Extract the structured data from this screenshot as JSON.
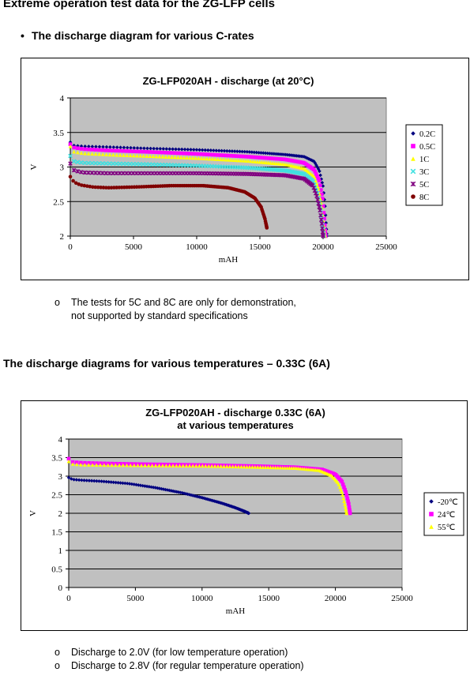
{
  "heading": "Extreme operation test data for the ZG-LFP cells",
  "bullet_heading": "The discharge diagram for various C-rates",
  "note1_line1": "The tests for 5C and 8C are only for demonstration,",
  "note1_line2": "not supported by standard specifications",
  "heading2": "The discharge diagrams for various temperatures – 0.33C (6A)",
  "note2_line1": "Discharge to 2.0V (for low temperature operation)",
  "note2_line2": "Discharge to 2.8V (for regular temperature operation)",
  "chart_data": [
    {
      "type": "scatter",
      "title": "ZG-LFP020AH - discharge (at 20°C)",
      "xlabel": "mAH",
      "ylabel": "V",
      "xlim": [
        0,
        25000
      ],
      "ylim": [
        2,
        4
      ],
      "xticks": [
        0,
        5000,
        10000,
        15000,
        20000,
        25000
      ],
      "yticks": [
        2,
        2.5,
        3,
        3.5,
        4
      ],
      "ytick_labels": [
        "2",
        "2.5",
        "3",
        "3.5",
        "4"
      ],
      "grid": "horizontal",
      "legend_position": "right",
      "series": [
        {
          "name": "0.2C",
          "color": "#000080",
          "marker": "diamond",
          "x": [
            0,
            300,
            1000,
            3000,
            6000,
            10000,
            14000,
            17000,
            18500,
            19300,
            19700,
            20000,
            20150,
            20250,
            20300
          ],
          "y": [
            3.36,
            3.31,
            3.3,
            3.29,
            3.27,
            3.25,
            3.22,
            3.18,
            3.15,
            3.08,
            2.95,
            2.72,
            2.45,
            2.15,
            2.0
          ]
        },
        {
          "name": "0.5C",
          "color": "#ff00ff",
          "marker": "square",
          "x": [
            0,
            300,
            1000,
            3000,
            6000,
            10000,
            14000,
            17000,
            18500,
            19300,
            19700,
            19950,
            20100,
            20200
          ],
          "y": [
            3.33,
            3.28,
            3.26,
            3.24,
            3.22,
            3.19,
            3.15,
            3.11,
            3.06,
            2.96,
            2.8,
            2.55,
            2.25,
            2.0
          ]
        },
        {
          "name": "1C",
          "color": "#ffff00",
          "marker": "triangle",
          "x": [
            0,
            300,
            1000,
            3000,
            6000,
            10000,
            14000,
            17000,
            18500,
            19300,
            19650,
            19900,
            20050,
            20150
          ],
          "y": [
            3.3,
            3.22,
            3.2,
            3.18,
            3.16,
            3.13,
            3.09,
            3.04,
            2.98,
            2.86,
            2.68,
            2.42,
            2.15,
            2.0
          ]
        },
        {
          "name": "3C",
          "color": "#40e0e0",
          "marker": "x",
          "x": [
            0,
            300,
            1000,
            3000,
            6000,
            10000,
            14000,
            17000,
            18500,
            19200,
            19550,
            19800,
            19950,
            20050
          ],
          "y": [
            3.16,
            3.08,
            3.06,
            3.05,
            3.04,
            3.02,
            2.99,
            2.95,
            2.9,
            2.8,
            2.62,
            2.38,
            2.15,
            2.0
          ]
        },
        {
          "name": "5C",
          "color": "#800080",
          "marker": "star",
          "x": [
            0,
            300,
            1000,
            3000,
            6000,
            10000,
            14000,
            17000,
            18500,
            19200,
            19500,
            19750,
            19900,
            20000
          ],
          "y": [
            3.05,
            2.95,
            2.92,
            2.91,
            2.91,
            2.91,
            2.9,
            2.88,
            2.83,
            2.73,
            2.58,
            2.38,
            2.18,
            2.0
          ]
        },
        {
          "name": "8C",
          "color": "#800000",
          "marker": "circle",
          "x": [
            0,
            300,
            800,
            1800,
            3000,
            5000,
            8000,
            10500,
            12500,
            13800,
            14600,
            15100,
            15400,
            15550
          ],
          "y": [
            2.86,
            2.78,
            2.74,
            2.71,
            2.7,
            2.71,
            2.73,
            2.73,
            2.7,
            2.64,
            2.55,
            2.42,
            2.25,
            2.12
          ]
        }
      ]
    },
    {
      "type": "scatter",
      "title": "ZG-LFP020AH - discharge 0.33C (6A)",
      "subtitle": "at various temperatures",
      "xlabel": "mAH",
      "ylabel": "V",
      "xlim": [
        0,
        25000
      ],
      "ylim": [
        0,
        4
      ],
      "xticks": [
        0,
        5000,
        10000,
        15000,
        20000,
        25000
      ],
      "yticks": [
        0,
        0.5,
        1,
        1.5,
        2,
        2.5,
        3,
        3.5,
        4
      ],
      "ytick_labels": [
        "0",
        "0.5",
        "1",
        "1.5",
        "2",
        "2.5",
        "3",
        "3.5",
        "4"
      ],
      "grid": "horizontal",
      "legend_position": "right",
      "series": [
        {
          "name": "-20℃",
          "color": "#000080",
          "marker": "diamond",
          "x": [
            0,
            300,
            1000,
            2500,
            4500,
            6500,
            8500,
            10000,
            11500,
            12500,
            13200,
            13500
          ],
          "y": [
            2.96,
            2.91,
            2.89,
            2.86,
            2.8,
            2.69,
            2.55,
            2.42,
            2.27,
            2.15,
            2.05,
            2.0
          ]
        },
        {
          "name": "24℃",
          "color": "#ff00ff",
          "marker": "square",
          "x": [
            0,
            300,
            1000,
            3000,
            6000,
            10000,
            14000,
            17000,
            19000,
            20000,
            20500,
            20800,
            21000,
            21100
          ],
          "y": [
            3.47,
            3.38,
            3.36,
            3.34,
            3.32,
            3.3,
            3.27,
            3.24,
            3.18,
            3.05,
            2.85,
            2.55,
            2.25,
            2.0
          ]
        },
        {
          "name": "55℃",
          "color": "#ffff00",
          "marker": "triangle",
          "x": [
            0,
            300,
            1000,
            3000,
            6000,
            10000,
            14000,
            17000,
            18800,
            19700,
            20200,
            20500,
            20700,
            20850
          ],
          "y": [
            3.4,
            3.33,
            3.31,
            3.3,
            3.29,
            3.28,
            3.25,
            3.22,
            3.16,
            3.02,
            2.82,
            2.55,
            2.25,
            2.0
          ]
        }
      ]
    }
  ]
}
